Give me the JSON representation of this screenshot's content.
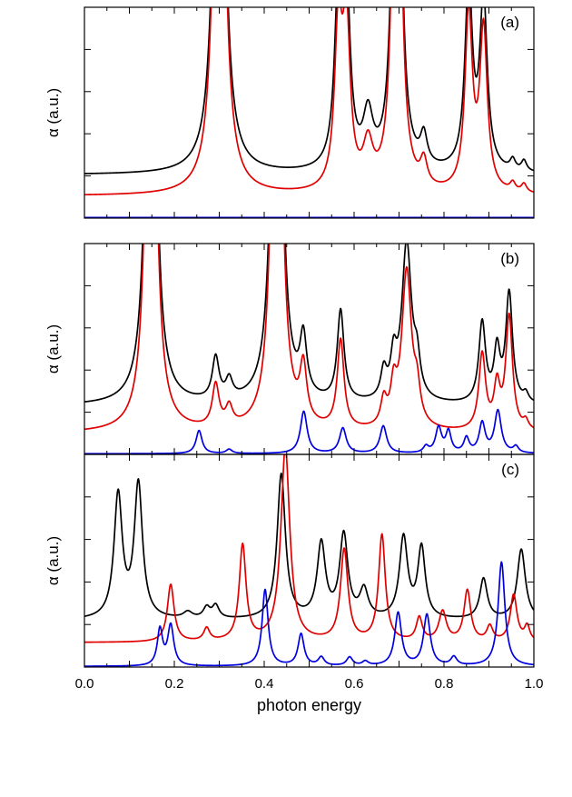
{
  "chart_data": [
    {
      "type": "line",
      "panel_label": "(a)",
      "ylabel": "α (a.u.)",
      "xlim": [
        0.0,
        1.0
      ],
      "ylim": [
        0,
        1
      ],
      "series": [
        {
          "name": "black",
          "color": "#000000",
          "baseline": 0.205,
          "peaks": [
            [
              0.3,
              0.012,
              3.0
            ],
            [
              0.565,
              0.01,
              0.8
            ],
            [
              0.583,
              0.01,
              0.8
            ],
            [
              0.631,
              0.013,
              0.24
            ],
            [
              0.695,
              0.009,
              3.0
            ],
            [
              0.755,
              0.009,
              0.14
            ],
            [
              0.855,
              0.01,
              0.88
            ],
            [
              0.888,
              0.01,
              0.8
            ],
            [
              0.953,
              0.007,
              0.05
            ],
            [
              0.978,
              0.007,
              0.05
            ]
          ]
        },
        {
          "name": "red",
          "color": "#e00000",
          "baseline": 0.105,
          "peaks": [
            [
              0.3,
              0.012,
              3.0
            ],
            [
              0.565,
              0.01,
              0.75
            ],
            [
              0.583,
              0.01,
              0.75
            ],
            [
              0.631,
              0.013,
              0.2
            ],
            [
              0.695,
              0.009,
              3.0
            ],
            [
              0.755,
              0.009,
              0.12
            ],
            [
              0.855,
              0.01,
              0.84
            ],
            [
              0.888,
              0.01,
              0.76
            ],
            [
              0.953,
              0.007,
              0.04
            ],
            [
              0.978,
              0.007,
              0.04
            ]
          ]
        },
        {
          "name": "blue",
          "color": "#0000e0",
          "baseline": 0.003,
          "peaks": []
        }
      ]
    },
    {
      "type": "line",
      "panel_label": "(b)",
      "ylabel": "α (a.u.)",
      "xlim": [
        0.0,
        1.0
      ],
      "ylim": [
        0,
        1
      ],
      "series": [
        {
          "name": "black",
          "color": "#000000",
          "baseline": 0.23,
          "peaks": [
            [
              0.148,
              0.011,
              3.0
            ],
            [
              0.292,
              0.009,
              0.2
            ],
            [
              0.322,
              0.009,
              0.09
            ],
            [
              0.428,
              0.011,
              3.0
            ],
            [
              0.487,
              0.009,
              0.27
            ],
            [
              0.57,
              0.009,
              0.43
            ],
            [
              0.666,
              0.008,
              0.13
            ],
            [
              0.688,
              0.008,
              0.18
            ],
            [
              0.717,
              0.013,
              0.75
            ],
            [
              0.74,
              0.008,
              0.15
            ],
            [
              0.885,
              0.009,
              0.38
            ],
            [
              0.918,
              0.008,
              0.24
            ],
            [
              0.945,
              0.009,
              0.52
            ],
            [
              0.982,
              0.007,
              0.04
            ]
          ]
        },
        {
          "name": "red",
          "color": "#e00000",
          "baseline": 0.1,
          "peaks": [
            [
              0.148,
              0.011,
              3.0
            ],
            [
              0.292,
              0.009,
              0.2
            ],
            [
              0.322,
              0.009,
              0.09
            ],
            [
              0.428,
              0.011,
              3.0
            ],
            [
              0.487,
              0.009,
              0.26
            ],
            [
              0.57,
              0.009,
              0.42
            ],
            [
              0.666,
              0.008,
              0.12
            ],
            [
              0.688,
              0.008,
              0.17
            ],
            [
              0.717,
              0.013,
              0.75
            ],
            [
              0.74,
              0.008,
              0.14
            ],
            [
              0.885,
              0.009,
              0.36
            ],
            [
              0.918,
              0.008,
              0.2
            ],
            [
              0.945,
              0.009,
              0.54
            ],
            [
              0.982,
              0.007,
              0.04
            ]
          ]
        },
        {
          "name": "blue",
          "color": "#0000e0",
          "baseline": 0.003,
          "peaks": [
            [
              0.255,
              0.008,
              0.11
            ],
            [
              0.322,
              0.008,
              0.02
            ],
            [
              0.488,
              0.009,
              0.2
            ],
            [
              0.575,
              0.009,
              0.12
            ],
            [
              0.665,
              0.009,
              0.13
            ],
            [
              0.76,
              0.007,
              0.03
            ],
            [
              0.788,
              0.008,
              0.12
            ],
            [
              0.81,
              0.007,
              0.1
            ],
            [
              0.85,
              0.007,
              0.07
            ],
            [
              0.885,
              0.008,
              0.14
            ],
            [
              0.92,
              0.009,
              0.2
            ],
            [
              0.96,
              0.007,
              0.03
            ]
          ]
        }
      ]
    },
    {
      "type": "line",
      "panel_label": "(c)",
      "ylabel": "α (a.u.)",
      "xlabel": "photon energy",
      "xlim": [
        0.0,
        1.0
      ],
      "ylim": [
        0,
        1
      ],
      "xticks": [
        "0.0",
        "0.2",
        "0.4",
        "0.6",
        "0.8",
        "1.0"
      ],
      "series": [
        {
          "name": "black",
          "color": "#000000",
          "baseline": 0.22,
          "peaks": [
            [
              0.075,
              0.011,
              0.58
            ],
            [
              0.12,
              0.011,
              0.63
            ],
            [
              0.23,
              0.012,
              0.03
            ],
            [
              0.272,
              0.009,
              0.05
            ],
            [
              0.292,
              0.009,
              0.06
            ],
            [
              0.438,
              0.011,
              0.68
            ],
            [
              0.527,
              0.011,
              0.35
            ],
            [
              0.577,
              0.011,
              0.39
            ],
            [
              0.622,
              0.011,
              0.13
            ],
            [
              0.71,
              0.011,
              0.38
            ],
            [
              0.75,
              0.01,
              0.33
            ],
            [
              0.888,
              0.01,
              0.19
            ],
            [
              0.972,
              0.011,
              0.33
            ]
          ]
        },
        {
          "name": "red",
          "color": "#e00000",
          "baseline": 0.115,
          "peaks": [
            [
              0.192,
              0.009,
              0.27
            ],
            [
              0.272,
              0.008,
              0.06
            ],
            [
              0.352,
              0.009,
              0.45
            ],
            [
              0.447,
              0.012,
              0.91
            ],
            [
              0.578,
              0.01,
              0.43
            ],
            [
              0.662,
              0.009,
              0.5
            ],
            [
              0.745,
              0.008,
              0.11
            ],
            [
              0.797,
              0.01,
              0.14
            ],
            [
              0.852,
              0.009,
              0.24
            ],
            [
              0.902,
              0.008,
              0.07
            ],
            [
              0.955,
              0.009,
              0.22
            ],
            [
              0.985,
              0.007,
              0.07
            ]
          ]
        },
        {
          "name": "blue",
          "color": "#0000e0",
          "baseline": 0.003,
          "peaks": [
            [
              0.168,
              0.007,
              0.17
            ],
            [
              0.192,
              0.008,
              0.19
            ],
            [
              0.402,
              0.008,
              0.36
            ],
            [
              0.482,
              0.008,
              0.15
            ],
            [
              0.527,
              0.008,
              0.04
            ],
            [
              0.59,
              0.008,
              0.04
            ],
            [
              0.625,
              0.008,
              0.02
            ],
            [
              0.698,
              0.009,
              0.25
            ],
            [
              0.762,
              0.009,
              0.24
            ],
            [
              0.822,
              0.008,
              0.04
            ],
            [
              0.928,
              0.009,
              0.49
            ]
          ]
        }
      ]
    }
  ]
}
